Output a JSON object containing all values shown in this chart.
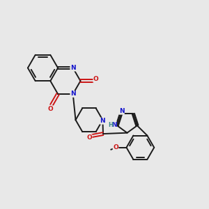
{
  "bg_color": "#e8e8e8",
  "bond_color": "#1a1a1a",
  "N_color": "#1414cc",
  "O_color": "#cc1414",
  "H_color": "#3a8888",
  "figsize": [
    3.0,
    3.0
  ],
  "dpi": 100,
  "xlim": [
    0,
    10
  ],
  "ylim": [
    0,
    10
  ]
}
